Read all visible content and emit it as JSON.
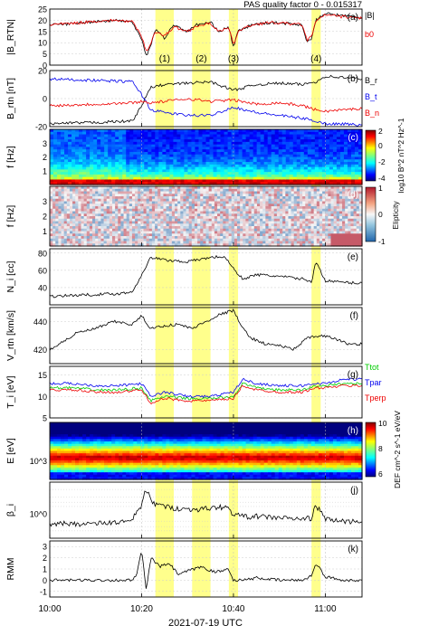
{
  "header": {
    "text": "PAS quality factor 0 - 0.015317"
  },
  "figure": {
    "time_start": "10:00",
    "time_end": "11:08",
    "xlabel": "2021-07-19 UTC",
    "xticks": [
      "10:00",
      "10:20",
      "10:40",
      "11:00"
    ],
    "intervals": [
      {
        "label": "(1)",
        "start": "10:23",
        "end": "10:27"
      },
      {
        "label": "(2)",
        "start": "10:31",
        "end": "10:35"
      },
      {
        "label": "(3)",
        "start": "10:39",
        "end": "10:41"
      },
      {
        "label": "(4)",
        "start": "10:57",
        "end": "10:59"
      }
    ],
    "colors": {
      "highlight": "#ffff66",
      "bx": "#000000",
      "bt": "#0000ee",
      "bn": "#ee0000"
    }
  },
  "chart_data": [
    {
      "type": "line",
      "id": "a",
      "panel_label": "(a)",
      "ylabel": "|B_RTN|",
      "ylim": [
        0,
        25
      ],
      "yticks": [
        0,
        5,
        10,
        15,
        20,
        25
      ],
      "series": [
        {
          "name": "|B|",
          "color": "#000000",
          "x": [
            "10:00",
            "10:05",
            "10:10",
            "10:15",
            "10:18",
            "10:20",
            "10:21",
            "10:22",
            "10:23",
            "10:25",
            "10:27",
            "10:30",
            "10:32",
            "10:35",
            "10:37",
            "10:39",
            "10:40",
            "10:41",
            "10:44",
            "10:48",
            "10:52",
            "10:55",
            "10:56",
            "10:57",
            "10:58",
            "11:00",
            "11:04",
            "11:08"
          ],
          "y": [
            18,
            18.5,
            19.5,
            20,
            19,
            12,
            4,
            9,
            16,
            12,
            18,
            15,
            18,
            19,
            15,
            17,
            8,
            15,
            18,
            19,
            18.5,
            18,
            10,
            12,
            20,
            23,
            22,
            21
          ]
        },
        {
          "name": "b0",
          "color": "#ee0000",
          "x": [
            "10:00",
            "10:05",
            "10:10",
            "10:15",
            "10:18",
            "10:20",
            "10:21",
            "10:22",
            "10:23",
            "10:25",
            "10:27",
            "10:30",
            "10:32",
            "10:35",
            "10:37",
            "10:39",
            "10:40",
            "10:41",
            "10:44",
            "10:48",
            "10:52",
            "10:55",
            "10:56",
            "10:57",
            "10:58",
            "11:00",
            "11:04",
            "11:08"
          ],
          "y": [
            18,
            18.6,
            19.6,
            20,
            19.2,
            13,
            6,
            10,
            15,
            13,
            17,
            15,
            17.5,
            18.5,
            15,
            16.5,
            9,
            15,
            18,
            19,
            18.5,
            18,
            11,
            13,
            19.5,
            22.5,
            21.5,
            21
          ]
        }
      ]
    },
    {
      "type": "line",
      "id": "b",
      "panel_label": "(b)",
      "ylabel": "B_rtn [nT]",
      "ylim": [
        -20,
        20
      ],
      "yticks": [
        -20,
        0,
        20
      ],
      "series": [
        {
          "name": "B_r",
          "color": "#000000",
          "x": [
            "10:00",
            "10:10",
            "10:18",
            "10:20",
            "10:22",
            "10:25",
            "10:30",
            "10:35",
            "10:40",
            "10:45",
            "10:50",
            "10:55",
            "10:58",
            "11:00",
            "11:04",
            "11:08"
          ],
          "y": [
            -18,
            -17,
            -16,
            -5,
            8,
            10,
            11,
            12,
            6,
            10,
            11,
            10,
            12,
            16,
            15,
            14
          ]
        },
        {
          "name": "B_t",
          "color": "#0000ee",
          "x": [
            "10:00",
            "10:10",
            "10:18",
            "10:20",
            "10:22",
            "10:25",
            "10:30",
            "10:35",
            "10:40",
            "10:45",
            "10:50",
            "10:55",
            "10:58",
            "11:00",
            "11:04",
            "11:08"
          ],
          "y": [
            14,
            13,
            12,
            3,
            -8,
            -10,
            -12,
            -12,
            -6,
            -10,
            -12,
            -14,
            -16,
            -18,
            -18,
            -19
          ]
        },
        {
          "name": "B_n",
          "color": "#ee0000",
          "x": [
            "10:00",
            "10:10",
            "10:18",
            "10:20",
            "10:22",
            "10:25",
            "10:30",
            "10:35",
            "10:40",
            "10:45",
            "10:50",
            "10:55",
            "10:58",
            "11:00",
            "11:04",
            "11:08"
          ],
          "y": [
            -5,
            -4,
            -3,
            -2,
            -3,
            -2,
            0,
            -2,
            -1,
            -4,
            -3,
            -5,
            -8,
            -9,
            -8,
            -7
          ]
        }
      ]
    },
    {
      "type": "heatmap",
      "id": "c",
      "panel_label": "(c)",
      "ylabel": "f [Hz]",
      "ylim": [
        0,
        4
      ],
      "yticks": [
        1,
        2,
        3
      ],
      "colorbar": {
        "label": "log10 B^2 nT^2 Hz^-1",
        "range": [
          -4,
          2
        ],
        "ticks": [
          2,
          0,
          -2,
          -4
        ]
      }
    },
    {
      "type": "heatmap",
      "id": "d",
      "panel_label": "(d)",
      "ylabel": "f [Hz]",
      "ylim": [
        0,
        4
      ],
      "yticks": [
        1,
        2,
        3
      ],
      "colorbar": {
        "label": "Elipticity",
        "range": [
          -1,
          1
        ],
        "ticks": [
          1,
          0,
          -1
        ]
      }
    },
    {
      "type": "line",
      "id": "e",
      "panel_label": "(e)",
      "ylabel": "N_i [cc]",
      "ylim": [
        20,
        85
      ],
      "yticks": [
        40,
        60,
        80
      ],
      "series": [
        {
          "name": "N_i",
          "color": "#000000",
          "x": [
            "10:00",
            "10:05",
            "10:10",
            "10:15",
            "10:18",
            "10:20",
            "10:22",
            "10:25",
            "10:30",
            "10:35",
            "10:38",
            "10:40",
            "10:42",
            "10:45",
            "10:50",
            "10:55",
            "10:57",
            "10:58",
            "11:00",
            "11:04",
            "11:08"
          ],
          "y": [
            30,
            31,
            32,
            33,
            35,
            55,
            75,
            72,
            70,
            75,
            76,
            62,
            50,
            55,
            53,
            50,
            47,
            70,
            48,
            46,
            45
          ]
        }
      ]
    },
    {
      "type": "line",
      "id": "f",
      "panel_label": "(f)",
      "ylabel": "V_rtn [km/s]",
      "ylim": [
        410,
        450
      ],
      "yticks": [
        420,
        440
      ],
      "series": [
        {
          "name": "V_rtn",
          "color": "#000000",
          "x": [
            "10:00",
            "10:03",
            "10:06",
            "10:10",
            "10:14",
            "10:18",
            "10:20",
            "10:22",
            "10:25",
            "10:28",
            "10:31",
            "10:34",
            "10:37",
            "10:40",
            "10:42",
            "10:44",
            "10:47",
            "10:50",
            "10:53",
            "10:56",
            "10:59",
            "11:02",
            "11:05",
            "11:08"
          ],
          "y": [
            420,
            426,
            432,
            435,
            440,
            438,
            444,
            435,
            437,
            438,
            435,
            440,
            445,
            448,
            435,
            428,
            424,
            423,
            420,
            428,
            430,
            428,
            424,
            424
          ]
        }
      ]
    },
    {
      "type": "line",
      "id": "g",
      "panel_label": "(g)",
      "ylabel": "T_i [eV]",
      "ylim": [
        5,
        17
      ],
      "yticks": [
        5,
        10,
        15
      ],
      "series": [
        {
          "name": "Ttot",
          "color": "#00cc00",
          "x": [
            "10:00",
            "10:05",
            "10:10",
            "10:15",
            "10:20",
            "10:22",
            "10:25",
            "10:30",
            "10:35",
            "10:40",
            "10:42",
            "10:45",
            "10:50",
            "10:55",
            "10:58",
            "11:00",
            "11:04",
            "11:08"
          ],
          "y": [
            12,
            12,
            11.5,
            11.5,
            12,
            9,
            10,
            9.5,
            9.5,
            10,
            13,
            12,
            11.5,
            11.5,
            12.5,
            12.5,
            13,
            13
          ]
        },
        {
          "name": "Tpar",
          "color": "#0000ee",
          "x": [
            "10:00",
            "10:05",
            "10:10",
            "10:15",
            "10:20",
            "10:22",
            "10:25",
            "10:30",
            "10:35",
            "10:40",
            "10:42",
            "10:45",
            "10:50",
            "10:55",
            "10:58",
            "11:00",
            "11:04",
            "11:08"
          ],
          "y": [
            13,
            13,
            12.5,
            12.5,
            13,
            10,
            11,
            10,
            10,
            11,
            14,
            13,
            12.5,
            12.5,
            13,
            13,
            14,
            14
          ]
        },
        {
          "name": "Tperp",
          "color": "#ee0000",
          "x": [
            "10:00",
            "10:05",
            "10:10",
            "10:15",
            "10:20",
            "10:22",
            "10:25",
            "10:30",
            "10:35",
            "10:40",
            "10:42",
            "10:45",
            "10:50",
            "10:55",
            "10:58",
            "11:00",
            "11:04",
            "11:08"
          ],
          "y": [
            11.5,
            11.5,
            11,
            11,
            11.5,
            8.5,
            9.5,
            9,
            9,
            9.5,
            12.5,
            11.5,
            11,
            11,
            12,
            12,
            12.5,
            12.5
          ]
        }
      ]
    },
    {
      "type": "heatmap",
      "id": "h",
      "panel_label": "(h)",
      "ylabel": "E [eV]",
      "yticks": [
        "10^3"
      ],
      "colorbar": {
        "label": "DEF cm^-2 s^-1 eV/eV",
        "range": [
          6,
          10
        ],
        "ticks": [
          10,
          8,
          6
        ]
      }
    },
    {
      "type": "line",
      "id": "j",
      "panel_label": "(j)",
      "ylabel": "β_i",
      "yscale": "log",
      "ylim": [
        0.1,
        20
      ],
      "yticks": [
        "10^0"
      ],
      "series": [
        {
          "name": "β_i",
          "color": "#000000",
          "x": [
            "10:00",
            "10:10",
            "10:18",
            "10:20",
            "10:21",
            "10:22",
            "10:25",
            "10:30",
            "10:35",
            "10:38",
            "10:40",
            "10:42",
            "10:45",
            "10:50",
            "10:55",
            "10:57",
            "10:58",
            "11:00",
            "11:04",
            "11:08"
          ],
          "y": [
            0.4,
            0.4,
            0.5,
            2,
            10,
            3,
            2,
            1.5,
            1.7,
            2,
            1,
            0.8,
            0.8,
            0.7,
            0.6,
            0.7,
            2,
            0.6,
            0.5,
            0.5
          ]
        }
      ]
    },
    {
      "type": "line",
      "id": "k",
      "panel_label": "(k)",
      "ylabel": "RMM",
      "ylim": [
        -1.5,
        3.5
      ],
      "yticks": [
        -1,
        0,
        1,
        2,
        3
      ],
      "series": [
        {
          "name": "RMM",
          "color": "#000000",
          "x": [
            "10:00",
            "10:10",
            "10:18",
            "10:19",
            "10:20",
            "10:21",
            "10:22",
            "10:24",
            "10:26",
            "10:28",
            "10:30",
            "10:33",
            "10:36",
            "10:39",
            "10:40",
            "10:42",
            "10:45",
            "10:50",
            "10:55",
            "10:57",
            "10:58",
            "11:00",
            "11:04",
            "11:08"
          ],
          "y": [
            0,
            0,
            0,
            0.5,
            2.8,
            -1,
            2,
            1.2,
            1.5,
            0.5,
            0.8,
            1.2,
            0.7,
            1,
            0,
            0,
            0.2,
            0,
            0,
            0.4,
            1.5,
            0.3,
            0,
            0
          ]
        }
      ]
    }
  ],
  "legends": {
    "a": [
      "|B|",
      "b0"
    ],
    "b": [
      "B_r",
      "B_t",
      "B_n"
    ],
    "g": [
      "Ttot",
      "Tpar",
      "Tperp"
    ]
  }
}
